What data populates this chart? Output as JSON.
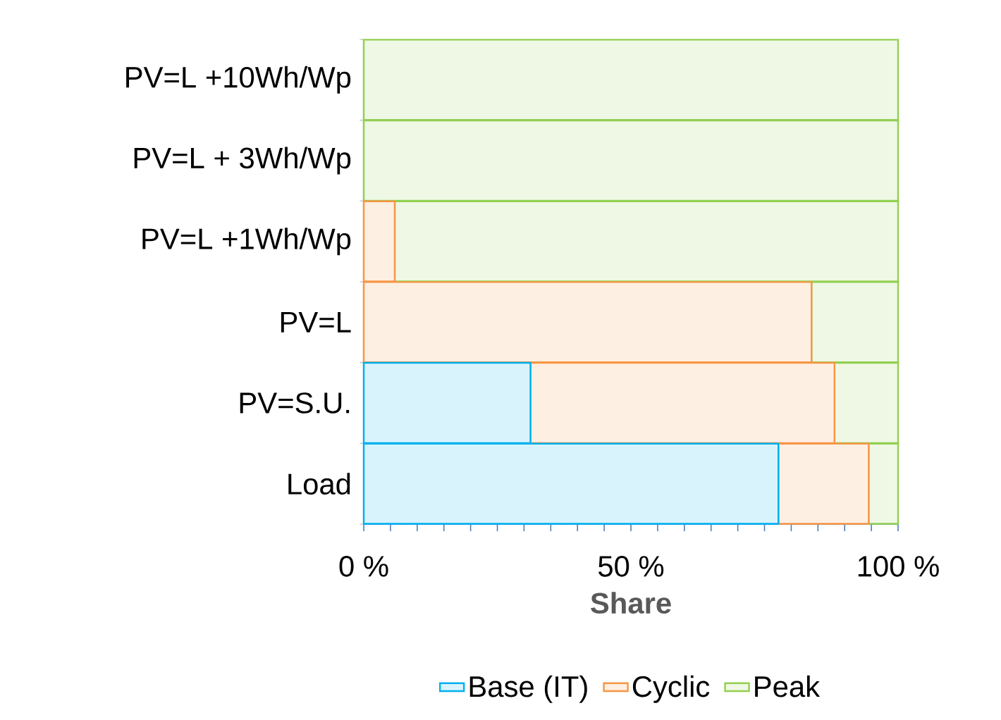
{
  "chart_data": {
    "type": "bar",
    "orientation": "horizontal",
    "stacked": true,
    "xlabel": "Share",
    "categories": [
      "PV=L +10Wh/Wp",
      "PV=L + 3Wh/Wp",
      "PV=L +1Wh/Wp",
      "PV=L",
      "PV=S.U.",
      "Load"
    ],
    "series": [
      {
        "name": "Base (IT)",
        "color": "#00b0f0",
        "values": [
          0,
          0,
          0,
          0,
          31.2,
          77.6
        ]
      },
      {
        "name": "Cyclic",
        "color": "#f79646",
        "values": [
          0,
          0,
          5.8,
          83.8,
          56.9,
          16.9
        ]
      },
      {
        "name": "Peak",
        "color": "#92d050",
        "values": [
          100,
          100,
          94.2,
          16.2,
          11.9,
          5.5
        ]
      }
    ],
    "xlim": [
      0,
      100
    ],
    "xticks": [
      {
        "value": 0,
        "label": "0 %"
      },
      {
        "value": 5,
        "label": null
      },
      {
        "value": 10,
        "label": null
      },
      {
        "value": 15,
        "label": null
      },
      {
        "value": 20,
        "label": null
      },
      {
        "value": 25,
        "label": null
      },
      {
        "value": 30,
        "label": null
      },
      {
        "value": 35,
        "label": null
      },
      {
        "value": 40,
        "label": null
      },
      {
        "value": 45,
        "label": null
      },
      {
        "value": 50,
        "label": "50 %"
      },
      {
        "value": 55,
        "label": null
      },
      {
        "value": 60,
        "label": null
      },
      {
        "value": 65,
        "label": null
      },
      {
        "value": 70,
        "label": null
      },
      {
        "value": 75,
        "label": null
      },
      {
        "value": 80,
        "label": null
      },
      {
        "value": 85,
        "label": null
      },
      {
        "value": 90,
        "label": null
      },
      {
        "value": 95,
        "label": null
      },
      {
        "value": 100,
        "label": "100 %"
      }
    ],
    "legend": "bottom"
  }
}
